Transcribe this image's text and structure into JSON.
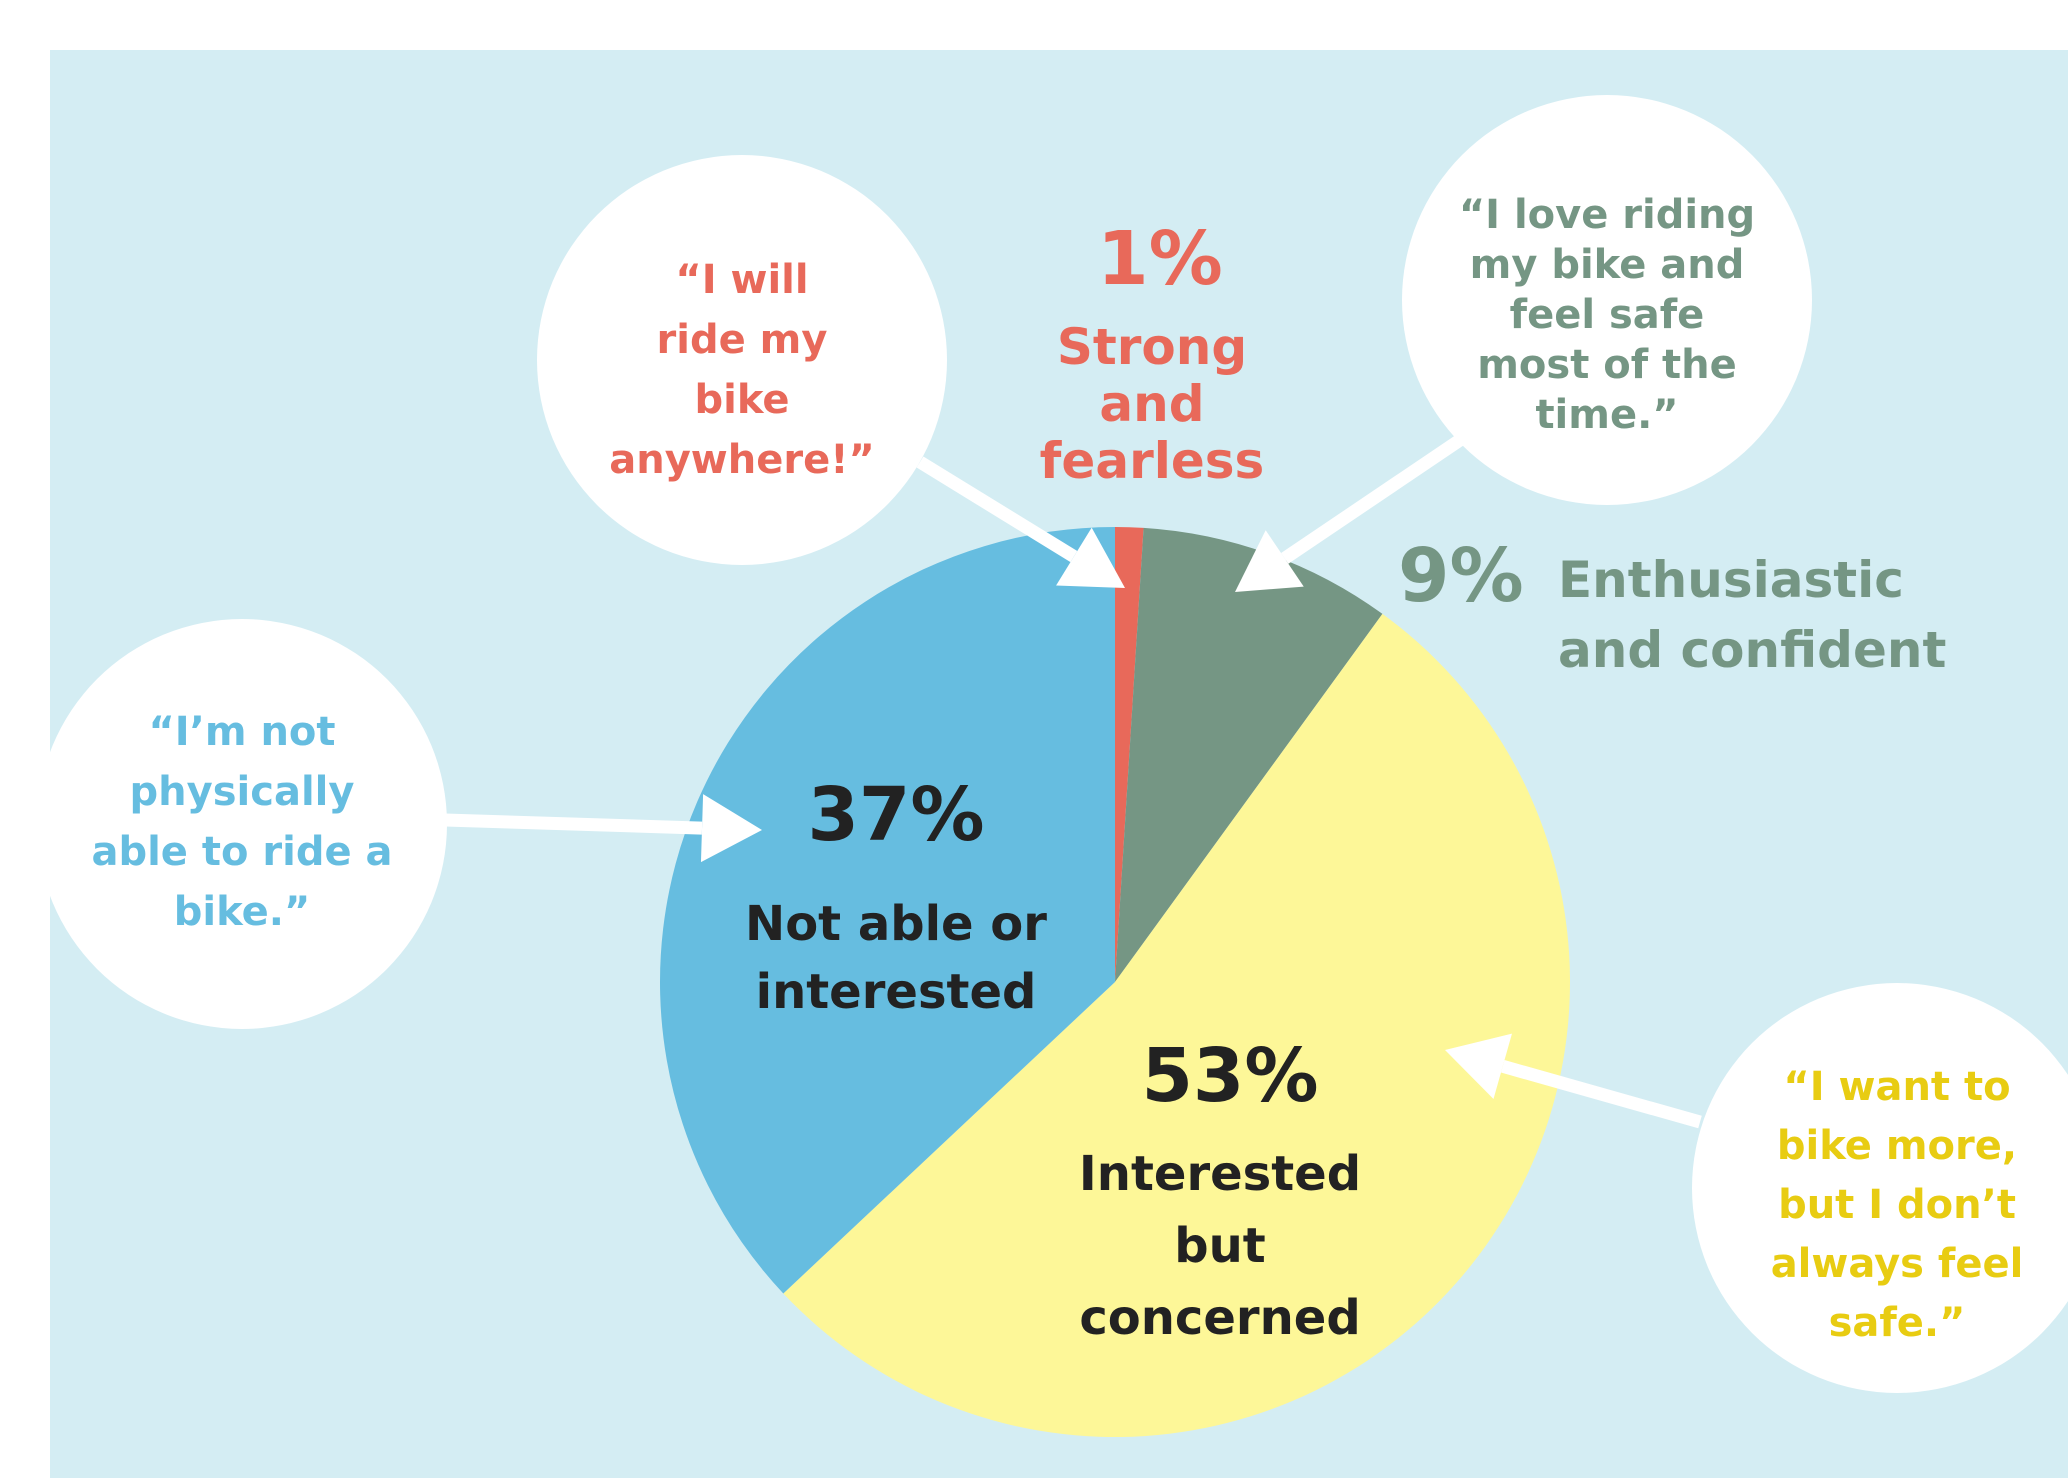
{
  "chart_data": {
    "type": "pie",
    "start_angle_deg": 0,
    "direction": "clockwise",
    "slices": [
      {
        "key": "strong",
        "percent_label": "1%",
        "value": 1,
        "label_lines": [
          "Strong",
          "and",
          "fearless"
        ],
        "color": "#E8695A"
      },
      {
        "key": "enthusiastic",
        "percent_label": "9%",
        "value": 9,
        "label_lines": [
          "Enthusiastic",
          "and confident"
        ],
        "color": "#759684"
      },
      {
        "key": "interested",
        "percent_label": "53%",
        "value": 53,
        "label_lines": [
          "Interested",
          "but",
          "concerned"
        ],
        "color": "#FDF798"
      },
      {
        "key": "notable",
        "percent_label": "37%",
        "value": 37,
        "label_lines": [
          "Not able or",
          "interested"
        ],
        "color": "#66BDE0"
      }
    ]
  },
  "quotes": [
    {
      "key": "strong",
      "lines": [
        "“I will",
        "ride my",
        "bike",
        "anywhere!”"
      ],
      "color": "#E8695A"
    },
    {
      "key": "enthusiastic",
      "lines": [
        "“I love riding",
        "my bike and",
        "feel safe",
        "most of the",
        "time.”"
      ],
      "color": "#759684"
    },
    {
      "key": "notable",
      "lines": [
        "“I’m not",
        "physically",
        "able to ride a",
        "bike.”"
      ],
      "color": "#66BDE0"
    },
    {
      "key": "interested",
      "lines": [
        "“I want to",
        "bike more,",
        "but I don’t",
        "always feel",
        "safe.”"
      ],
      "color": "#E8CC12"
    }
  ],
  "colors": {
    "background_panel": "#D4EDF3",
    "bubble": "#FFFFFF",
    "arrow": "#FFFFFF",
    "dark_text": "#222222"
  }
}
